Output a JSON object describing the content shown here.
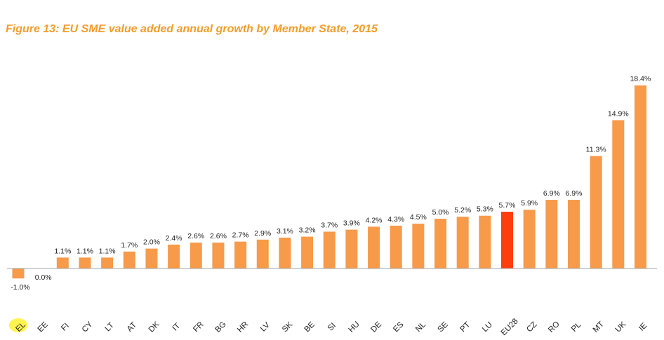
{
  "chart_data": {
    "type": "bar",
    "title": "Figure 13: EU SME value added annual growth by Member State, 2015",
    "xlabel": "",
    "ylabel": "",
    "categories": [
      "EL",
      "EE",
      "FI",
      "CY",
      "LT",
      "AT",
      "DK",
      "IT",
      "FR",
      "BG",
      "HR",
      "LV",
      "SK",
      "BE",
      "SI",
      "HU",
      "DE",
      "ES",
      "NL",
      "SE",
      "PT",
      "LU",
      "EU28",
      "CZ",
      "RO",
      "PL",
      "MT",
      "UK",
      "IE"
    ],
    "values": [
      -1.0,
      0.0,
      1.1,
      1.1,
      1.1,
      1.7,
      2.0,
      2.4,
      2.6,
      2.6,
      2.7,
      2.9,
      3.1,
      3.2,
      3.7,
      3.9,
      4.2,
      4.3,
      4.5,
      5.0,
      5.2,
      5.3,
      5.7,
      5.9,
      6.9,
      6.9,
      11.3,
      14.9,
      18.4
    ],
    "value_labels": [
      "-1.0%",
      "0.0%",
      "1.1%",
      "1.1%",
      "1.1%",
      "1.7%",
      "2.0%",
      "2.4%",
      "2.6%",
      "2.6%",
      "2.7%",
      "2.9%",
      "3.1%",
      "3.2%",
      "3.7%",
      "3.9%",
      "4.2%",
      "4.3%",
      "4.5%",
      "5.0%",
      "5.2%",
      "5.3%",
      "5.7%",
      "5.9%",
      "6.9%",
      "6.9%",
      "11.3%",
      "14.9%",
      "18.4%"
    ],
    "highlight_category": "EU28",
    "highlighted_tick_label": "EL",
    "ylim": [
      -1.5,
      20.5
    ],
    "grid": false,
    "legend": "none",
    "colors": {
      "bar": "#f79a4a",
      "highlight_bar": "#ff3d0d",
      "title": "#f39c2b",
      "axis": "#a6a6a6",
      "tick_highlight": "#fff44f"
    }
  }
}
